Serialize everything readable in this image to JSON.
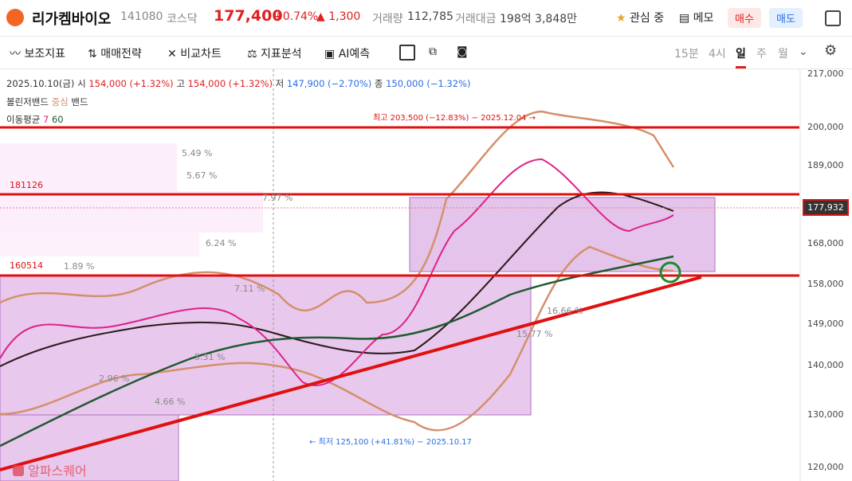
{
  "header": {
    "name": "리가켐바이오",
    "code": "141080",
    "market": "코스닥",
    "price": "177,400",
    "change_pct": "+0.74%",
    "change": "▲ 1,300",
    "volume_label": "거래량",
    "volume": "112,785",
    "amount_label": "거래대금",
    "amount": "198억 3,848만",
    "watch": "관심 중",
    "memo": "메모",
    "buy": "매수",
    "sell": "매도"
  },
  "toolbar": {
    "items": [
      "보조지표",
      "매매전략",
      "비교차트",
      "지표분석",
      "AI예측"
    ],
    "timeframes": [
      "15분",
      "4시",
      "일",
      "주",
      "월"
    ]
  },
  "info": {
    "date": "2025.10.10(금)",
    "open_label": "시",
    "open": "154,000 (+1.32%)",
    "high_label": "고",
    "high": "154,000 (+1.32%)",
    "low_label": "저",
    "low": "147,900 (−2.70%)",
    "close_label": "종",
    "close": "150,000 (−1.32%)",
    "bollinger": "볼린저밴드",
    "bollinger_center": "중심",
    "bollinger_band": "밴드",
    "ma": "이동평균",
    "ma_short": "7",
    "ma_long": "60"
  },
  "axis": {
    "ticks": [
      "217,000",
      "200,000",
      "189,000",
      "168,000",
      "158,000",
      "149,000",
      "140,000",
      "130,000",
      "120,000"
    ],
    "current": "177,932"
  },
  "levels": [
    "181126",
    "160514"
  ],
  "percents": [
    "5.49 %",
    "5.67 %",
    "7.97 %",
    "6.24 %",
    "1.89 %",
    "7.11 %",
    "2.96 %",
    "4.66 %",
    "5.31 %",
    "16.66 %",
    "15.77 %"
  ],
  "annotations": {
    "high": "최고 203,500 (−12.83%) − 2025.12.04 →",
    "low": "← 최저 125,100 (+41.81%) − 2025.10.17"
  },
  "watermark": "알파스퀘어"
}
